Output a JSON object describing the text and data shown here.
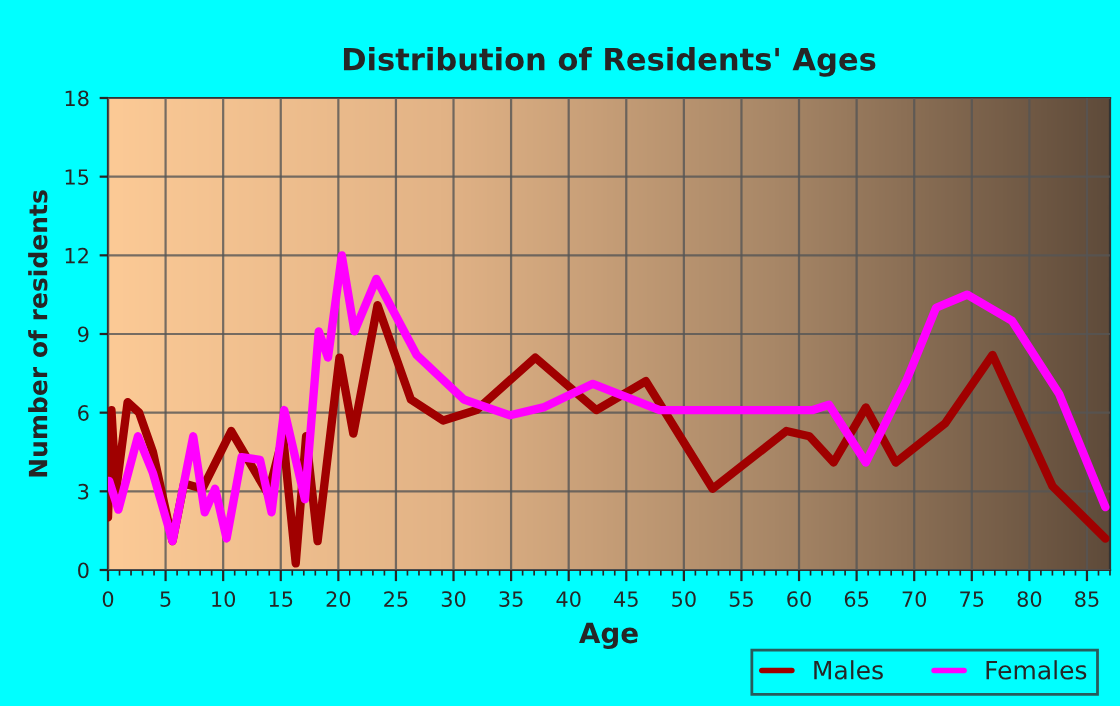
{
  "chart_data": {
    "type": "line",
    "title": "Distribution of Residents' Ages",
    "xlabel": "Age",
    "ylabel": "Number of residents",
    "xlim": [
      0,
      87
    ],
    "xticks": [
      0,
      5,
      10,
      15,
      20,
      25,
      30,
      35,
      40,
      45,
      50,
      55,
      60,
      65,
      70,
      75,
      80,
      85
    ],
    "ylim": [
      0,
      18
    ],
    "yticks": [
      0,
      3,
      6,
      9,
      12,
      15,
      18
    ],
    "grid": true,
    "legend": "bottom right",
    "series": [
      {
        "name": "Males",
        "color": "#a00000",
        "x": [
          0,
          0.3,
          0.7,
          1.7,
          2.7,
          3.9,
          5.6,
          6.6,
          8.2,
          10.7,
          13.9,
          15.2,
          16.3,
          17.2,
          18.2,
          20.1,
          21.3,
          23.4,
          26.3,
          29.1,
          32,
          37.1,
          42.4,
          46.7,
          52.5,
          58.9,
          60.9,
          63,
          65.8,
          68.4,
          72.7,
          76.8,
          82,
          86.6
        ],
        "values": [
          2,
          6.1,
          3,
          6.4,
          6,
          4.5,
          1.1,
          3.3,
          3.1,
          5.3,
          2.9,
          5.1,
          0.25,
          5.1,
          1.1,
          8.1,
          5.2,
          10.1,
          6.5,
          5.7,
          6.1,
          8.1,
          6.1,
          7.2,
          3.1,
          5.3,
          5.1,
          4.1,
          6.2,
          4.1,
          5.6,
          8.2,
          3.2,
          1.2
        ]
      },
      {
        "name": "Females",
        "color": "#ff00ff",
        "x": [
          0.1,
          0.9,
          2.6,
          3.9,
          5.6,
          7.4,
          8.4,
          9.3,
          10.3,
          11.6,
          13.2,
          14.2,
          15.3,
          17.1,
          18.3,
          19.1,
          20.3,
          21.4,
          23.3,
          26.8,
          30.9,
          34.9,
          37.8,
          42.1,
          47.9,
          53.7,
          61.2,
          62.6,
          65.8,
          69.3,
          71.9,
          74.6,
          78.5,
          82.6,
          86.6
        ],
        "values": [
          3.4,
          2.3,
          5.1,
          3.7,
          1.1,
          5.1,
          2.2,
          3.1,
          1.2,
          4.3,
          4.2,
          2.2,
          6.1,
          2.7,
          9.1,
          8.1,
          12,
          9.1,
          11.1,
          8.2,
          6.5,
          5.9,
          6.2,
          7.1,
          6.1,
          6.1,
          6.1,
          6.3,
          4.1,
          7.2,
          10,
          10.5,
          9.5,
          6.7,
          2.4
        ]
      }
    ]
  }
}
